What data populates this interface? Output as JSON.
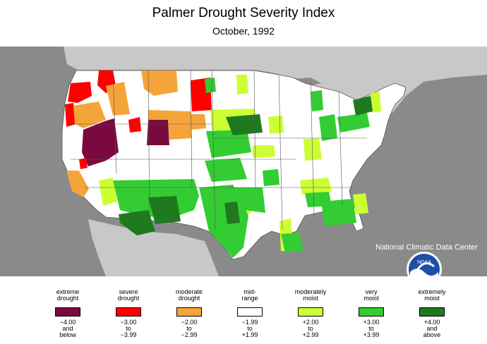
{
  "title": "Palmer Drought Severity Index",
  "subtitle": "October, 1992",
  "credit": "National Climatic Data Center",
  "logo": {
    "text": "NOAA",
    "icon": "noaa-logo-icon"
  },
  "colors": {
    "background": "#8a8a8a",
    "land": "#ffffff",
    "water": "#c8c8c8",
    "border": "#555555"
  },
  "legend": [
    {
      "label_1": "extreme",
      "label_2": "drought",
      "color": "#7a0a3e",
      "range_1": "−4.00",
      "range_2": "and",
      "range_3": "below"
    },
    {
      "label_1": "severe",
      "label_2": "drought",
      "color": "#ff0000",
      "range_1": "−3.00",
      "range_2": "to",
      "range_3": "−3.99"
    },
    {
      "label_1": "moderate",
      "label_2": "drought",
      "color": "#f5a43a",
      "range_1": "−2.00",
      "range_2": "to",
      "range_3": "−2.99"
    },
    {
      "label_1": "mid-",
      "label_2": "range",
      "color": "#ffffff",
      "range_1": "−1.99",
      "range_2": "to",
      "range_3": "+1.99"
    },
    {
      "label_1": "moderately",
      "label_2": "moist",
      "color": "#ccff33",
      "range_1": "+2.00",
      "range_2": "to",
      "range_3": "+2.99"
    },
    {
      "label_1": "very",
      "label_2": "moist",
      "color": "#33cc33",
      "range_1": "+3.00",
      "range_2": "to",
      "range_3": "+3.99"
    },
    {
      "label_1": "extremely",
      "label_2": "moist",
      "color": "#1f7a1f",
      "range_1": "+4.00",
      "range_2": "and",
      "range_3": "above"
    }
  ]
}
